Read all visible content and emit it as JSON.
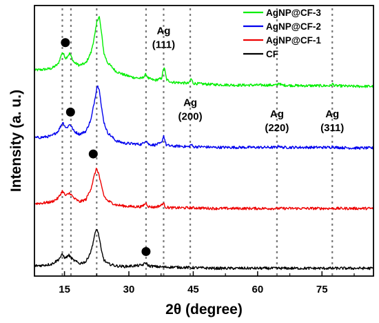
{
  "chart_data": {
    "type": "line",
    "xlabel": "2θ (degree)",
    "ylabel": "Intensity (a. u.)",
    "xlim": [
      8,
      87
    ],
    "xticks": [
      15,
      30,
      45,
      60,
      75
    ],
    "xminor": [
      7.5,
      22.5,
      37.5,
      52.5,
      67.5,
      82.5
    ],
    "y_ticks_shown": false,
    "grid": false,
    "legend_position": "top-right",
    "series": [
      {
        "name": "AgNP@CF-3",
        "color": "#00ee00",
        "offset": 3.0,
        "points": [
          [
            8,
            0.32
          ],
          [
            10,
            0.33
          ],
          [
            12,
            0.35
          ],
          [
            13.5,
            0.42
          ],
          [
            14.5,
            0.62
          ],
          [
            15.3,
            0.52
          ],
          [
            16.2,
            0.6
          ],
          [
            17.2,
            0.45
          ],
          [
            18.5,
            0.4
          ],
          [
            20,
            0.44
          ],
          [
            21.2,
            0.62
          ],
          [
            22.1,
            0.92
          ],
          [
            22.6,
            1.15
          ],
          [
            23.1,
            1.22
          ],
          [
            23.6,
            0.95
          ],
          [
            24.2,
            0.6
          ],
          [
            25,
            0.45
          ],
          [
            27,
            0.3
          ],
          [
            29,
            0.24
          ],
          [
            31,
            0.2
          ],
          [
            33,
            0.18
          ],
          [
            34,
            0.25
          ],
          [
            34.6,
            0.18
          ],
          [
            36,
            0.15
          ],
          [
            37.6,
            0.18
          ],
          [
            38.2,
            0.38
          ],
          [
            38.8,
            0.16
          ],
          [
            40,
            0.12
          ],
          [
            42,
            0.11
          ],
          [
            44,
            0.1
          ],
          [
            44.5,
            0.18
          ],
          [
            45,
            0.1
          ],
          [
            47,
            0.09
          ],
          [
            50,
            0.08
          ],
          [
            55,
            0.07
          ],
          [
            60,
            0.07
          ],
          [
            64.5,
            0.07
          ],
          [
            65,
            0.11
          ],
          [
            65.5,
            0.07
          ],
          [
            70,
            0.06
          ],
          [
            77,
            0.06
          ],
          [
            77.5,
            0.09
          ],
          [
            78,
            0.06
          ],
          [
            82,
            0.05
          ],
          [
            87,
            0.05
          ]
        ]
      },
      {
        "name": "AgNP@CF-2",
        "color": "#0000ee",
        "offset": 2.0,
        "points": [
          [
            8,
            0.19
          ],
          [
            10,
            0.2
          ],
          [
            12,
            0.22
          ],
          [
            13.5,
            0.3
          ],
          [
            14.6,
            0.45
          ],
          [
            15.4,
            0.35
          ],
          [
            16.3,
            0.42
          ],
          [
            17.2,
            0.3
          ],
          [
            18.5,
            0.25
          ],
          [
            20,
            0.3
          ],
          [
            21.2,
            0.5
          ],
          [
            22.1,
            0.85
          ],
          [
            22.6,
            1.06
          ],
          [
            23.1,
            1.02
          ],
          [
            23.6,
            0.7
          ],
          [
            24.2,
            0.45
          ],
          [
            25,
            0.28
          ],
          [
            27,
            0.14
          ],
          [
            29,
            0.1
          ],
          [
            31,
            0.09
          ],
          [
            33,
            0.08
          ],
          [
            34,
            0.15
          ],
          [
            34.6,
            0.08
          ],
          [
            36,
            0.07
          ],
          [
            37.6,
            0.1
          ],
          [
            38.1,
            0.23
          ],
          [
            38.7,
            0.07
          ],
          [
            40,
            0.05
          ],
          [
            42,
            0.05
          ],
          [
            44,
            0.04
          ],
          [
            44.5,
            0.08
          ],
          [
            45,
            0.04
          ],
          [
            47,
            0.04
          ],
          [
            50,
            0.03
          ],
          [
            55,
            0.03
          ],
          [
            60,
            0.03
          ],
          [
            64.5,
            0.03
          ],
          [
            65,
            0.06
          ],
          [
            65.5,
            0.03
          ],
          [
            70,
            0.03
          ],
          [
            77,
            0.03
          ],
          [
            77.5,
            0.05
          ],
          [
            78,
            0.03
          ],
          [
            82,
            0.02
          ],
          [
            87,
            0.02
          ]
        ]
      },
      {
        "name": "AgNP@CF-1",
        "color": "#ee0000",
        "offset": 1.0,
        "points": [
          [
            8,
            0.09
          ],
          [
            10,
            0.1
          ],
          [
            12,
            0.12
          ],
          [
            13.5,
            0.18
          ],
          [
            14.5,
            0.3
          ],
          [
            15.3,
            0.22
          ],
          [
            16.2,
            0.27
          ],
          [
            17.2,
            0.18
          ],
          [
            18.5,
            0.12
          ],
          [
            20,
            0.16
          ],
          [
            21.2,
            0.35
          ],
          [
            22.1,
            0.6
          ],
          [
            22.5,
            0.68
          ],
          [
            23.0,
            0.58
          ],
          [
            23.6,
            0.38
          ],
          [
            24.2,
            0.22
          ],
          [
            25,
            0.14
          ],
          [
            27,
            0.07
          ],
          [
            29,
            0.05
          ],
          [
            31,
            0.04
          ],
          [
            33,
            0.04
          ],
          [
            34,
            0.1
          ],
          [
            34.6,
            0.04
          ],
          [
            36,
            0.03
          ],
          [
            37.5,
            0.06
          ],
          [
            38.0,
            0.1
          ],
          [
            38.6,
            0.03
          ],
          [
            40,
            0.02
          ],
          [
            45,
            0.02
          ],
          [
            50,
            0.01
          ],
          [
            60,
            0.01
          ],
          [
            70,
            0.01
          ],
          [
            87,
            0.01
          ]
        ]
      },
      {
        "name": "CF",
        "color": "#000000",
        "offset": 0.0,
        "points": [
          [
            8,
            0.05
          ],
          [
            10,
            0.06
          ],
          [
            12,
            0.08
          ],
          [
            13.5,
            0.15
          ],
          [
            14.5,
            0.24
          ],
          [
            15.2,
            0.18
          ],
          [
            16.0,
            0.23
          ],
          [
            17.0,
            0.15
          ],
          [
            18.5,
            0.09
          ],
          [
            20,
            0.12
          ],
          [
            21.2,
            0.3
          ],
          [
            22.0,
            0.55
          ],
          [
            22.5,
            0.68
          ],
          [
            23.0,
            0.56
          ],
          [
            23.6,
            0.3
          ],
          [
            24.2,
            0.15
          ],
          [
            25,
            0.09
          ],
          [
            27,
            0.05
          ],
          [
            29,
            0.04
          ],
          [
            31,
            0.05
          ],
          [
            33,
            0.06
          ],
          [
            34,
            0.1
          ],
          [
            34.6,
            0.05
          ],
          [
            36,
            0.04
          ],
          [
            38,
            0.03
          ],
          [
            40,
            0.03
          ],
          [
            45,
            0.02
          ],
          [
            50,
            0.01
          ],
          [
            60,
            0.01
          ],
          [
            70,
            0.01
          ],
          [
            87,
            0.01
          ]
        ]
      }
    ],
    "reference_lines": [
      14.5,
      16.5,
      22.5,
      34.0,
      38.1,
      44.3,
      64.5,
      77.4
    ],
    "annotations": [
      {
        "lines": [
          "Ag",
          "(111)"
        ],
        "x": 38.1,
        "y": 3.92
      },
      {
        "lines": [
          "Ag",
          "(200)"
        ],
        "x": 44.3,
        "y": 2.72
      },
      {
        "lines": [
          "Ag",
          "(220)"
        ],
        "x": 64.5,
        "y": 2.53
      },
      {
        "lines": [
          "Ag",
          "(311)"
        ],
        "x": 77.4,
        "y": 2.53
      }
    ],
    "markers": [
      {
        "x": 15.2,
        "y": 3.78
      },
      {
        "x": 16.4,
        "y": 2.62
      },
      {
        "x": 21.7,
        "y": 1.92
      },
      {
        "x": 34.0,
        "y": 0.29
      }
    ]
  }
}
